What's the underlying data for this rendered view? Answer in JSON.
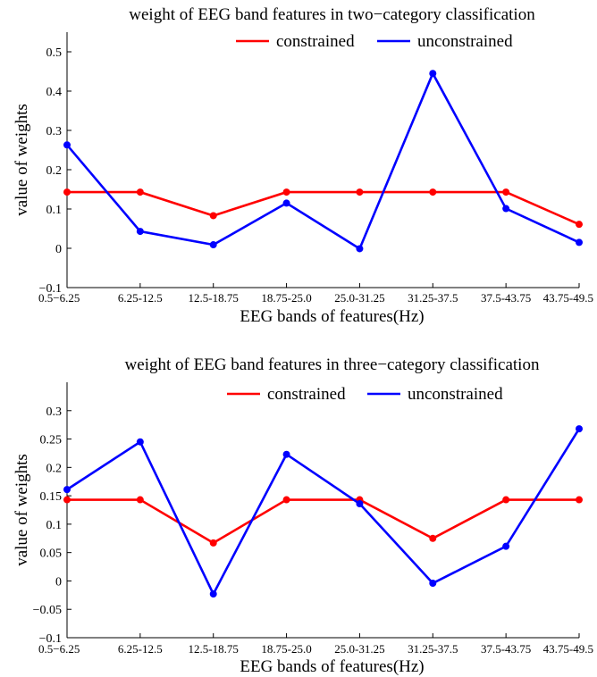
{
  "chart_data": [
    {
      "type": "line",
      "title": "weight of EEG band features in two−category classification",
      "xlabel": "EEG bands of features(Hz)",
      "ylabel": "value of weights",
      "categories": [
        "0.5−6.25",
        "6.25-12.5",
        "12.5-18.75",
        "18.75-25.0",
        "25.0-31.25",
        "31.25-37.5",
        "37.5-43.75",
        "43.75-49.5"
      ],
      "ylim": [
        -0.1,
        0.55
      ],
      "yticks": [
        -0.1,
        0,
        0.1,
        0.2,
        0.3,
        0.4,
        0.5
      ],
      "ytick_labels": [
        "−0.1",
        "0",
        "0.1",
        "0.2",
        "0.3",
        "0.4",
        "0.5"
      ],
      "grid": false,
      "legend_position": "top",
      "series": [
        {
          "name": "constrained",
          "color": "#ff0000",
          "values": [
            0.143,
            0.143,
            0.083,
            0.143,
            0.143,
            0.143,
            0.143,
            0.061
          ]
        },
        {
          "name": "unconstrained",
          "color": "#0000ff",
          "values": [
            0.263,
            0.043,
            0.009,
            0.115,
            -0.001,
            0.445,
            0.101,
            0.015
          ]
        }
      ]
    },
    {
      "type": "line",
      "title": "weight of EEG band features in three−category classification",
      "xlabel": "EEG bands of features(Hz)",
      "ylabel": "value of weights",
      "categories": [
        "0.5−6.25",
        "6.25-12.5",
        "12.5-18.75",
        "18.75-25.0",
        "25.0-31.25",
        "31.25-37.5",
        "37.5-43.75",
        "43.75-49.5"
      ],
      "ylim": [
        -0.1,
        0.35
      ],
      "yticks": [
        -0.1,
        -0.05,
        0,
        0.05,
        0.1,
        0.15,
        0.2,
        0.25,
        0.3
      ],
      "ytick_labels": [
        "−0.1",
        "−0.05",
        "0",
        "0.05",
        "0.1",
        "0.15",
        "0.2",
        "0.25",
        "0.3"
      ],
      "grid": false,
      "legend_position": "top",
      "series": [
        {
          "name": "constrained",
          "color": "#ff0000",
          "values": [
            0.143,
            0.143,
            0.067,
            0.143,
            0.143,
            0.075,
            0.143,
            0.143
          ]
        },
        {
          "name": "unconstrained",
          "color": "#0000ff",
          "values": [
            0.161,
            0.245,
            -0.023,
            0.223,
            0.136,
            -0.004,
            0.061,
            0.268
          ]
        }
      ]
    }
  ]
}
